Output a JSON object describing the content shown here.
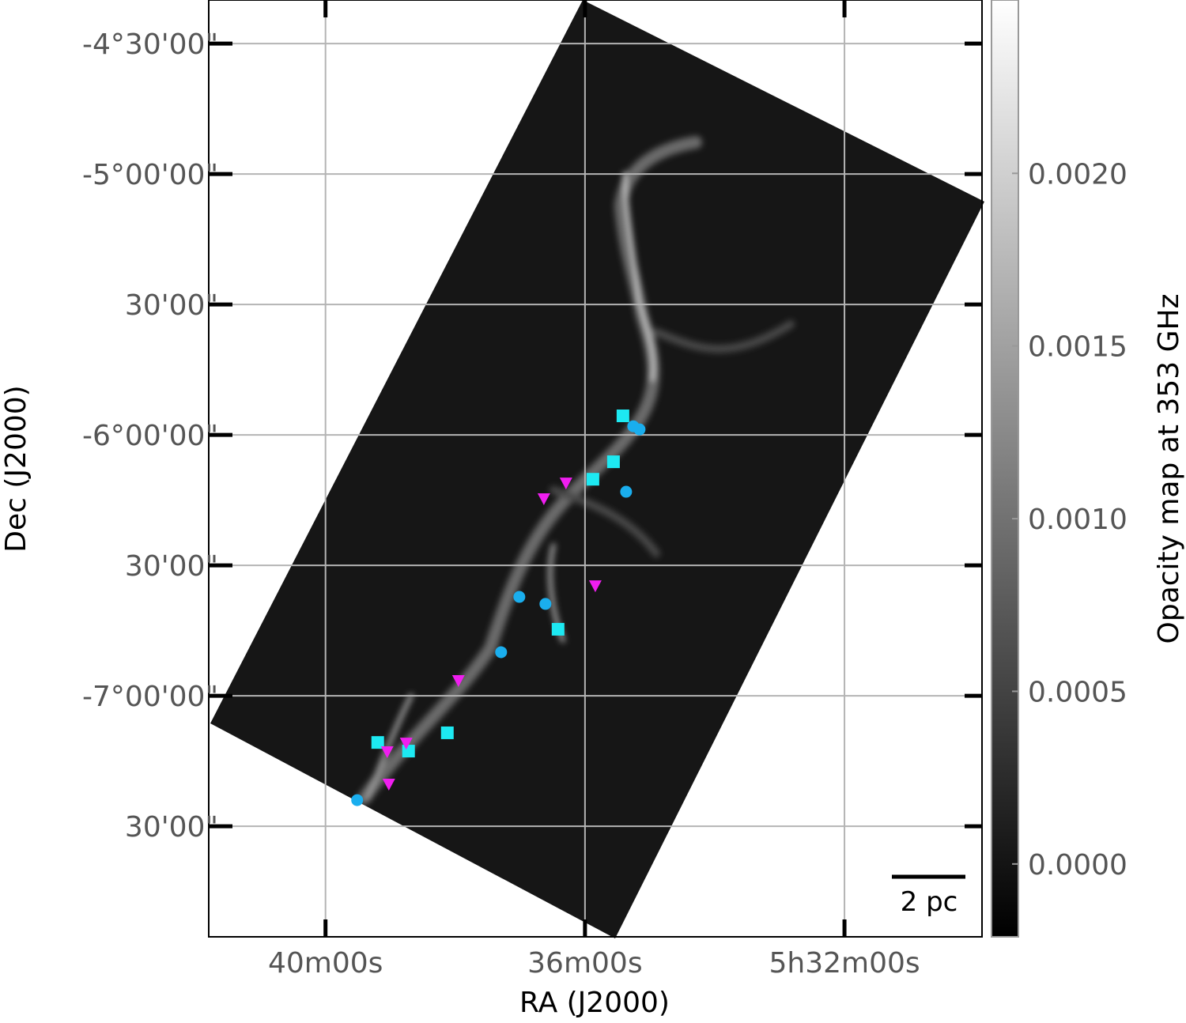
{
  "chart_data": {
    "type": "scatter",
    "xlabel": "RA (J2000)",
    "ylabel": "Dec (J2000)",
    "xlim": [
      341.8,
      329.88
    ],
    "ylim": [
      -7.924,
      -4.333
    ],
    "xticks": [
      {
        "value": 340,
        "label": "40m00s"
      },
      {
        "value": 336,
        "label": "36m00s"
      },
      {
        "value": 332,
        "label": "5h32m00s"
      }
    ],
    "yticks": [
      {
        "value": -4.5,
        "label": "-4°30'00\""
      },
      {
        "value": -5,
        "label": "-5°00'00\""
      },
      {
        "value": -5.5,
        "label": "30'00\""
      },
      {
        "value": -6,
        "label": "-6°00'00\""
      },
      {
        "value": -6.5,
        "label": "30'00\""
      },
      {
        "value": -7,
        "label": "-7°00'00\""
      },
      {
        "value": -7.5,
        "label": "30'00\""
      }
    ],
    "grid": true,
    "series": [
      {
        "color": "#1de9f2",
        "marker": "square",
        "x": [
          335.415,
          335.561,
          335.878,
          336.415,
          338.122,
          339.195,
          338.72
        ],
        "y": [
          -5.927,
          -6.103,
          -6.17,
          -6.745,
          -7.142,
          -7.179,
          -7.212
        ]
      },
      {
        "color": "#1aaeee",
        "marker": "circle",
        "x": [
          335.256,
          335.159,
          335.366,
          337.012,
          336.61,
          337.293,
          339.512
        ],
        "y": [
          -5.967,
          -5.979,
          -6.218,
          -6.621,
          -6.648,
          -6.833,
          -7.4
        ]
      },
      {
        "color": "#f01ef0",
        "marker": "triangle-down",
        "x": [
          336.293,
          336.634,
          335.841,
          337.951,
          338.756,
          339.049,
          339.024
        ],
        "y": [
          -6.185,
          -6.245,
          -6.579,
          -6.942,
          -7.182,
          -7.215,
          -7.339
        ]
      }
    ],
    "colorbar": {
      "label": "Opacity map at 353 GHz",
      "lim": [
        -0.000211,
        0.002502
      ],
      "ticks": [
        {
          "value": 0,
          "label": "0.0000"
        },
        {
          "value": 0.0005,
          "label": "0.0005"
        },
        {
          "value": 0.001,
          "label": "0.0010"
        },
        {
          "value": 0.0015,
          "label": "0.0015"
        },
        {
          "value": 0.002,
          "label": "0.0020"
        }
      ]
    },
    "scalebar_label": "2 pc"
  }
}
